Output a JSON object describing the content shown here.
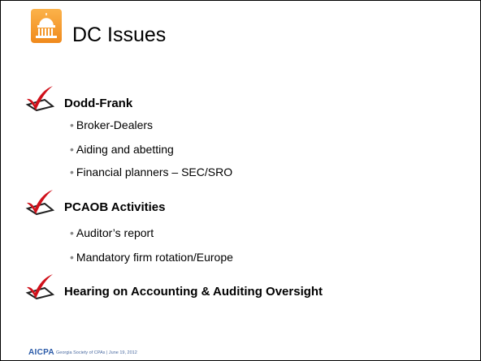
{
  "header": {
    "title": "DC Issues"
  },
  "items": [
    {
      "label": "Dodd-Frank",
      "subitems": [
        "Broker-Dealers",
        "Aiding and abetting",
        "Financial planners – SEC/SRO"
      ]
    },
    {
      "label": "PCAOB Activities",
      "subitems": [
        "Auditor’s report",
        "Mandatory firm rotation/Europe"
      ]
    },
    {
      "label": "Hearing on Accounting & Auditing Oversight",
      "subitems": []
    }
  ],
  "footer": {
    "logo": "AICPA",
    "text": "Georgia Society of CPAs | June 19, 2012"
  }
}
